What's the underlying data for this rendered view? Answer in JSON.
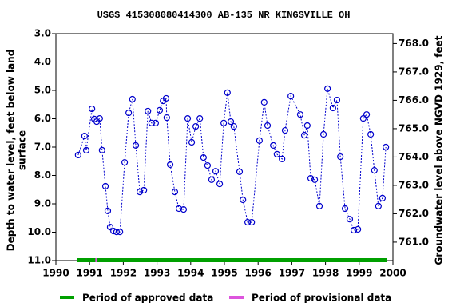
{
  "chart_data": {
    "type": "scatter-line",
    "title": "USGS 415308080414300 AB-135 NR KINGSVILLE OH",
    "ylabel": [
      "Depth to water level, feet below land",
      "surface"
    ],
    "y2label": "Groundwater level above NGVD 1929, feet",
    "color": "#0000cc",
    "x": [
      1990.66,
      1990.85,
      1990.9,
      1991.07,
      1991.14,
      1991.21,
      1991.3,
      1991.37,
      1991.47,
      1991.54,
      1991.61,
      1991.71,
      1991.8,
      1991.9,
      1992.04,
      1992.16,
      1992.27,
      1992.37,
      1992.49,
      1992.61,
      1992.73,
      1992.84,
      1992.96,
      1993.08,
      1993.18,
      1993.27,
      1993.29,
      1993.39,
      1993.53,
      1993.65,
      1993.79,
      1993.91,
      1994.03,
      1994.15,
      1994.27,
      1994.38,
      1994.5,
      1994.62,
      1994.74,
      1994.86,
      1994.98,
      1995.09,
      1995.19,
      1995.28,
      1995.45,
      1995.55,
      1995.69,
      1995.81,
      1996.04,
      1996.18,
      1996.28,
      1996.45,
      1996.56,
      1996.71,
      1996.8,
      1996.97,
      1997.25,
      1997.37,
      1997.46,
      1997.56,
      1997.68,
      1997.82,
      1997.94,
      1998.06,
      1998.22,
      1998.34,
      1998.44,
      1998.58,
      1998.72,
      1998.84,
      1998.96,
      1999.12,
      1999.22,
      1999.34,
      1999.45,
      1999.57,
      1999.69,
      1999.79
    ],
    "values": [
      7.28,
      6.61,
      7.11,
      5.65,
      6.01,
      6.1,
      5.99,
      7.11,
      8.38,
      9.25,
      9.82,
      9.96,
      9.99,
      9.99,
      7.54,
      5.79,
      5.31,
      6.94,
      8.58,
      8.52,
      5.73,
      6.15,
      6.15,
      5.7,
      5.37,
      5.28,
      5.96,
      7.62,
      8.58,
      9.17,
      9.2,
      5.99,
      6.83,
      6.27,
      5.99,
      7.37,
      7.65,
      8.15,
      7.85,
      8.3,
      6.15,
      5.08,
      6.1,
      6.27,
      7.87,
      8.86,
      9.65,
      9.65,
      6.77,
      5.42,
      6.24,
      6.94,
      7.25,
      7.42,
      6.41,
      5.2,
      5.85,
      6.58,
      6.24,
      8.1,
      8.15,
      9.08,
      6.55,
      4.94,
      5.62,
      5.34,
      7.34,
      9.17,
      9.54,
      9.93,
      9.9,
      5.99,
      5.85,
      6.55,
      7.82,
      9.08,
      8.8,
      7.0
    ],
    "xlim": [
      1990,
      2000
    ],
    "xticks": [
      1990,
      1991,
      1992,
      1993,
      1994,
      1995,
      1996,
      1997,
      1998,
      1999,
      2000
    ],
    "ylim": [
      3,
      11
    ],
    "y_inverted": true,
    "yticks": [
      {
        "value": 3,
        "label": "3.0"
      },
      {
        "value": 4,
        "label": "4.0"
      },
      {
        "value": 5,
        "label": "5.0"
      },
      {
        "value": 6,
        "label": "6.0"
      },
      {
        "value": 7,
        "label": "7.0"
      },
      {
        "value": 8,
        "label": "8.0"
      },
      {
        "value": 9,
        "label": "9.0"
      },
      {
        "value": 10,
        "label": "10.0"
      },
      {
        "value": 11,
        "label": "11.0"
      }
    ],
    "y2lim": [
      760.35,
      768.35
    ],
    "y2ticks": [
      {
        "value": 761,
        "label": "761.0"
      },
      {
        "value": 762,
        "label": "762.0"
      },
      {
        "value": 763,
        "label": "763.0"
      },
      {
        "value": 764,
        "label": "764.0"
      },
      {
        "value": 765,
        "label": "765.0"
      },
      {
        "value": 766,
        "label": "766.0"
      },
      {
        "value": 767,
        "label": "767.0"
      },
      {
        "value": 768,
        "label": "768.0"
      }
    ],
    "periods": [
      {
        "name": "Period of approved data",
        "color": "#00a000",
        "start": 1990.62,
        "end": 1999.82
      },
      {
        "name": "Period of provisional data",
        "color": "#dd55dd",
        "start": 1991.17,
        "end": 1991.23
      }
    ]
  }
}
